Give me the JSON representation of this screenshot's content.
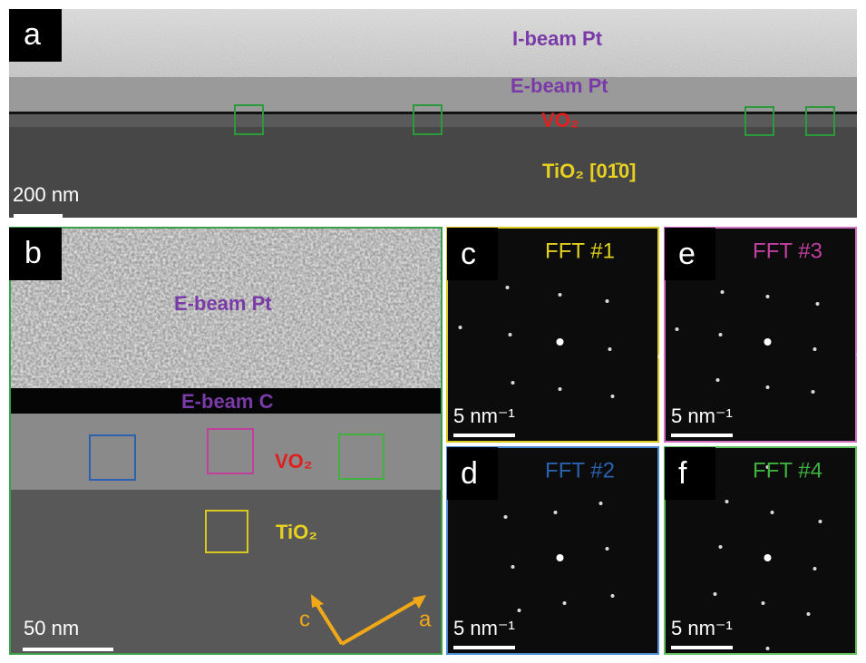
{
  "panel_a": {
    "label": "a",
    "text_ibeam": "I-beam Pt",
    "text_ebeam": "E-beam Pt",
    "text_vo2": "VO₂",
    "text_tio2": "TiO₂ [01̄0]",
    "scale_bar": "200 nm"
  },
  "panel_b": {
    "label": "b",
    "text_ebeam_pt": "E-beam Pt",
    "text_ebeam_c": "E-beam C",
    "text_vo2": "VO₂",
    "text_tio2": "TiO₂",
    "axis_c": "c",
    "axis_a": "a",
    "scale_bar": "50 nm"
  },
  "panel_c": {
    "label": "c",
    "title": "FFT #1",
    "scale_bar": "5 nm⁻¹"
  },
  "panel_d": {
    "label": "d",
    "title": "FFT #2",
    "scale_bar": "5 nm⁻¹"
  },
  "panel_e": {
    "label": "e",
    "title": "FFT #3",
    "scale_bar": "5 nm⁻¹"
  },
  "panel_f": {
    "label": "f",
    "title": "FFT #4",
    "scale_bar": "5 nm⁻¹"
  }
}
